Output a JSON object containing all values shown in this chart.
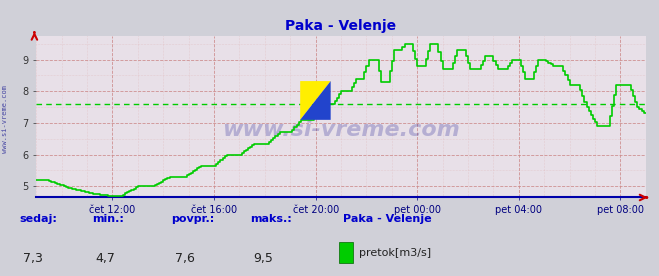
{
  "title": "Paka - Velenje",
  "title_color": "#0000cc",
  "bg_color": "#d0d0d8",
  "plot_bg_color": "#e8e0e8",
  "line_color": "#00cc00",
  "avg_line_color": "#00cc00",
  "avg_value": 7.6,
  "ylim": [
    4.65,
    9.75
  ],
  "yticks": [
    5,
    6,
    7,
    8,
    9
  ],
  "xlabel_color": "#000080",
  "xtick_labels": [
    "čet 12:00",
    "čet 16:00",
    "čet 20:00",
    "pet 00:00",
    "pet 04:00",
    "pet 08:00"
  ],
  "grid_color_major": "#cc8888",
  "grid_color_minor": "#ddaaaa",
  "watermark": "www.si-vreme.com",
  "watermark_color": "#000080",
  "side_text": "www.si-vreme.com",
  "footer_labels": [
    "sedaj:",
    "min.:",
    "povpr.:",
    "maks.:"
  ],
  "footer_values": [
    "7,3",
    "4,7",
    "7,6",
    "9,5"
  ],
  "footer_series_name": "Paka - Velenje",
  "footer_legend_label": "pretok[m3/s]",
  "footer_color": "#0000cc",
  "n_points": 289
}
